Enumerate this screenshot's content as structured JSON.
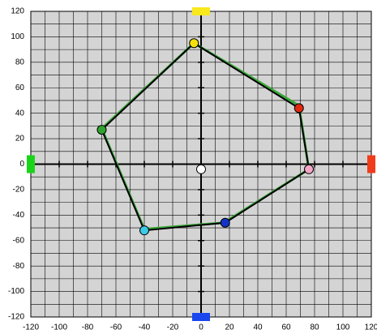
{
  "chart_data": {
    "type": "polygon",
    "xlim": [
      -120,
      120
    ],
    "ylim": [
      -120,
      120
    ],
    "xticks": [
      -120,
      -100,
      -80,
      -60,
      -40,
      -20,
      0,
      20,
      40,
      60,
      80,
      100,
      120
    ],
    "yticks": [
      -120,
      -100,
      -80,
      -60,
      -40,
      -20,
      0,
      20,
      40,
      60,
      80,
      100,
      120
    ],
    "grid": true,
    "grid_step": 10,
    "background": "#d4d4d4",
    "outline": {
      "color": "#3aa63a",
      "x": [
        -5,
        69,
        76,
        16,
        -40,
        -70
      ],
      "y": [
        95,
        46,
        -4,
        -46,
        -51,
        28
      ]
    },
    "polygon": {
      "color": "#000000",
      "x": [
        -5,
        69,
        76,
        17,
        -40,
        -70
      ],
      "y": [
        95,
        44,
        -4,
        -46,
        -52,
        27
      ]
    },
    "points": {
      "x": [
        -5,
        69,
        76,
        17,
        -40,
        -70,
        0
      ],
      "y": [
        95,
        44,
        -4,
        -46,
        -52,
        27,
        -4
      ],
      "colors": [
        "#f4e10c",
        "#e02a10",
        "#f4a6c8",
        "#1434c8",
        "#3ccbe6",
        "#2ea42e",
        "#ffffff"
      ]
    },
    "axis_markers": {
      "x": [
        0,
        0,
        -120,
        120
      ],
      "y": [
        120,
        -120,
        0,
        0
      ],
      "colors": [
        "#f8e81c",
        "#1a46f0",
        "#1ad41a",
        "#f03c1a"
      ]
    }
  }
}
